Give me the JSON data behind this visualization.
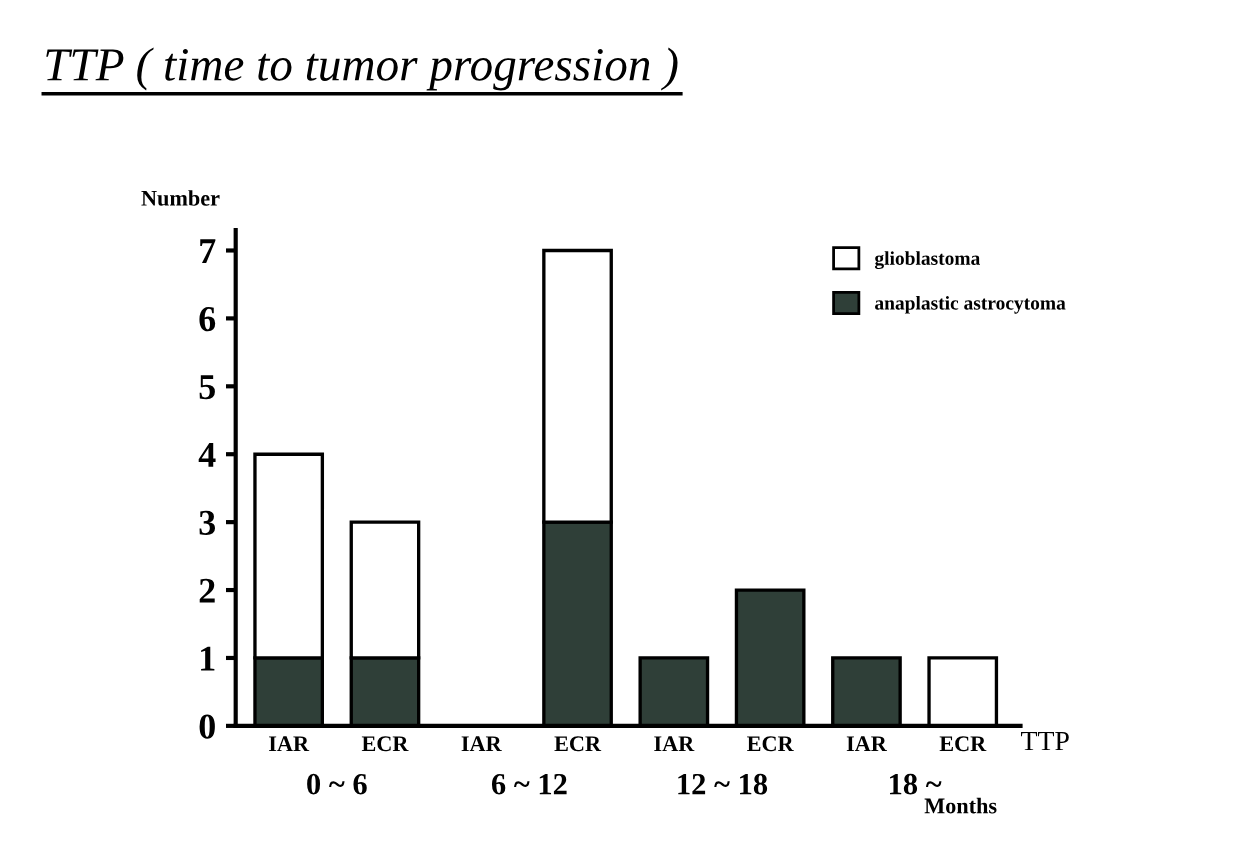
{
  "chart_data": {
    "type": "bar",
    "stacked": true,
    "title": "TTP ( time to tumor progression )",
    "ylabel": "Number",
    "xlabel": "TTP",
    "categories": [
      "IAR",
      "ECR",
      "IAR",
      "ECR",
      "IAR",
      "ECR",
      "IAR",
      "ECR"
    ],
    "series": [
      {
        "name": "anaplastic astrocytoma",
        "color": "#2f3f38",
        "values": [
          1,
          1,
          0,
          3,
          1,
          2,
          1,
          0
        ]
      },
      {
        "name": "glioblastoma",
        "color": "#ffffff",
        "values": [
          3,
          2,
          0,
          4,
          0,
          0,
          0,
          1
        ]
      }
    ],
    "ylim": [
      0,
      7.3
    ],
    "yticks": [
      0,
      1,
      2,
      3,
      4,
      5,
      6,
      7
    ],
    "grid": false,
    "legend": "top right",
    "annotations": [
      "0 ~ 6",
      "6 ~ 12",
      "12 ~ 18",
      "18 ~",
      "Months"
    ]
  }
}
